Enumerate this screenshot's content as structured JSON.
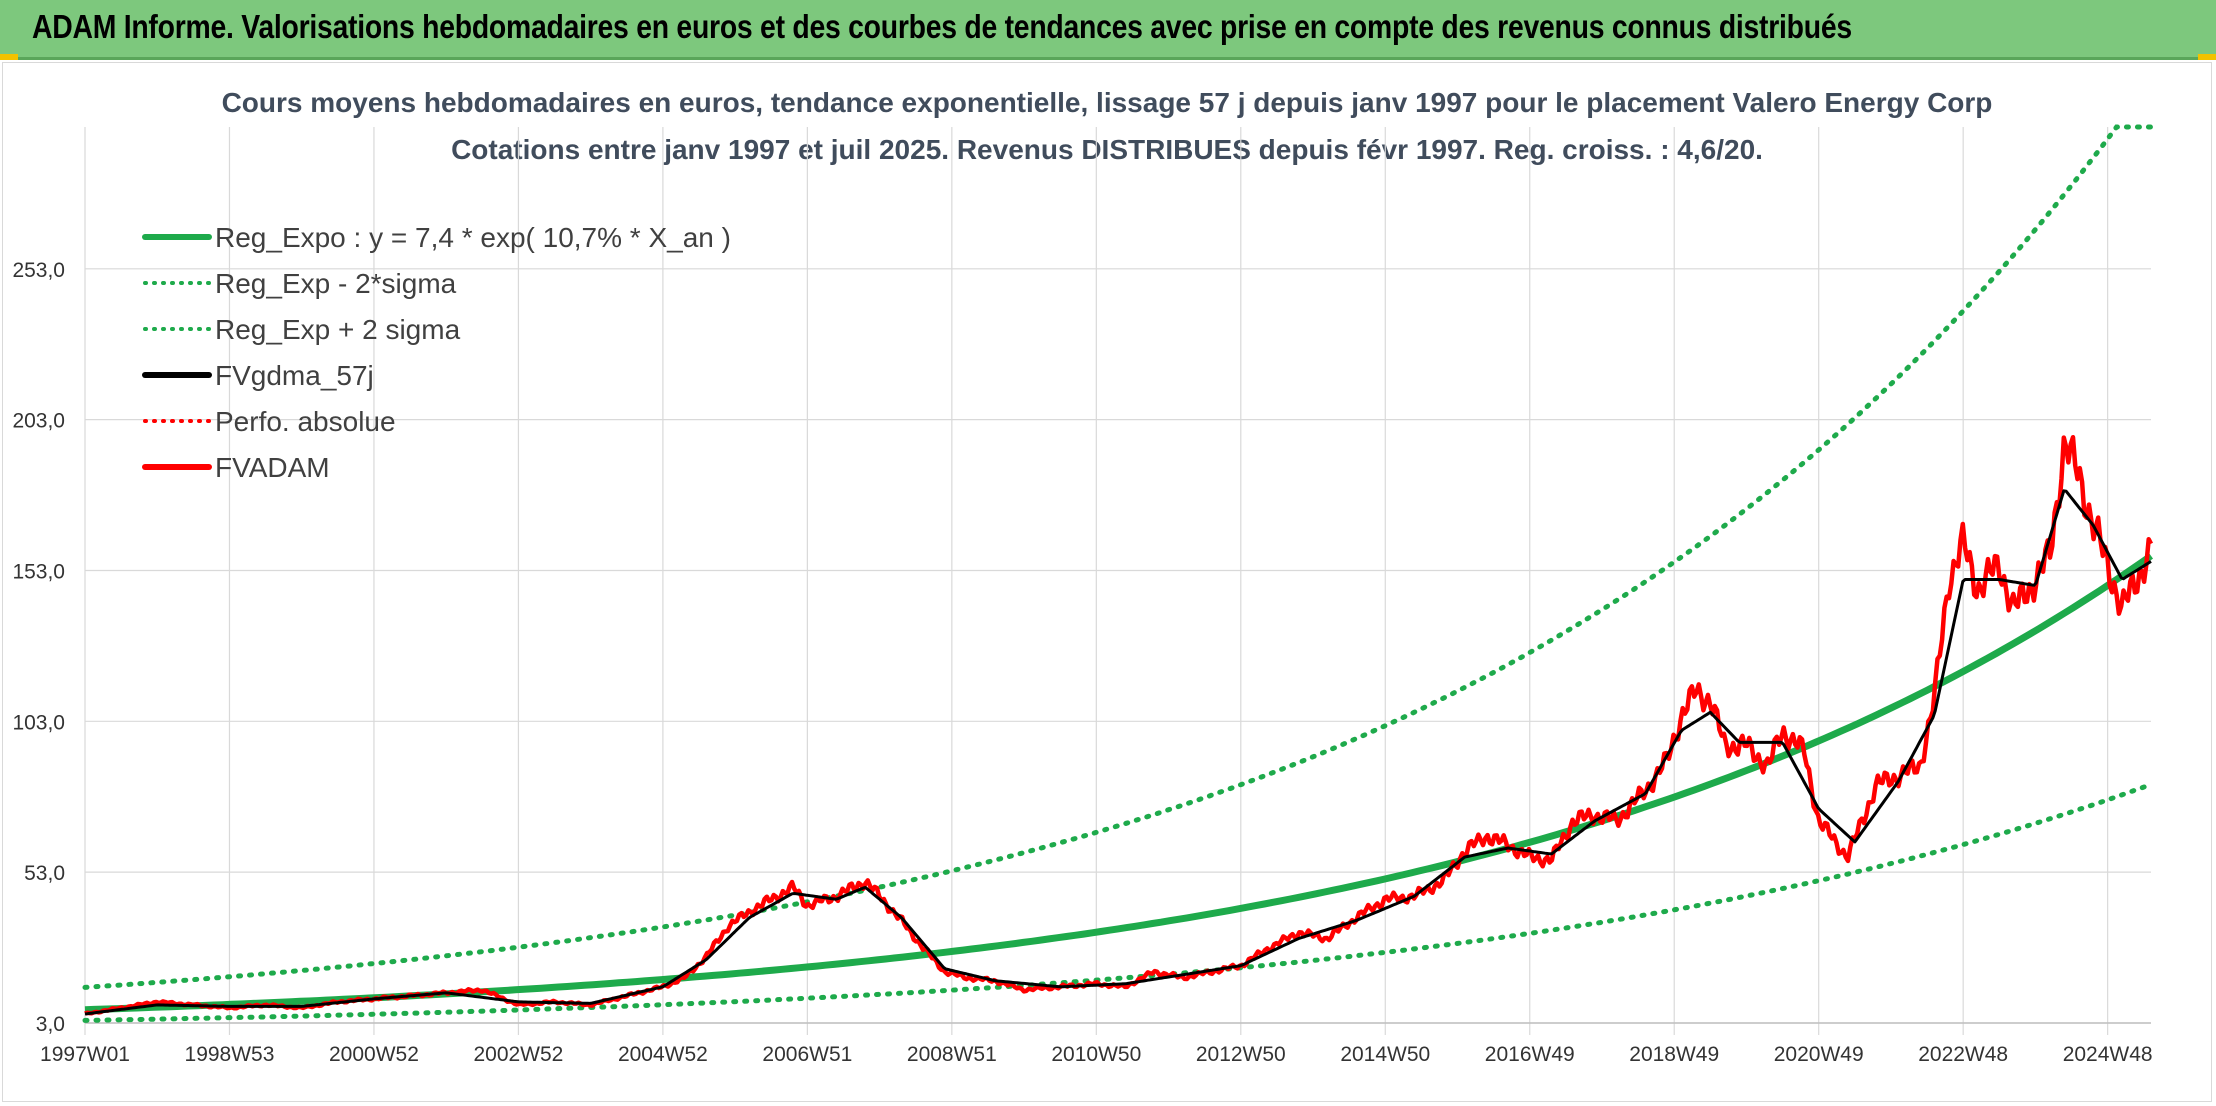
{
  "banner": {
    "title": "ADAM Informe. Valorisations hebdomadaires en euros et des courbes de tendances avec prise en compte des revenus connus distribués"
  },
  "chart_data": {
    "type": "line",
    "title_lines": [
      "Cours moyens hebdomadaires en euros, tendance exponentielle, lissage 57 j depuis janv 1997 pour le placement Valero Energy Corp",
      "Cotations entre janv 1997 et juil 2025. Revenus DISTRIBUES depuis févr 1997. Reg. croiss. : 4,6/20."
    ],
    "x_ticks": [
      {
        "label": "1997W01",
        "year": 1997.0
      },
      {
        "label": "1998W53",
        "year": 1999.0
      },
      {
        "label": "2000W52",
        "year": 2001.0
      },
      {
        "label": "2002W52",
        "year": 2003.0
      },
      {
        "label": "2004W52",
        "year": 2005.0
      },
      {
        "label": "2006W51",
        "year": 2007.0
      },
      {
        "label": "2008W51",
        "year": 2009.0
      },
      {
        "label": "2010W50",
        "year": 2011.0
      },
      {
        "label": "2012W50",
        "year": 2013.0
      },
      {
        "label": "2014W50",
        "year": 2015.0
      },
      {
        "label": "2016W49",
        "year": 2017.0
      },
      {
        "label": "2018W49",
        "year": 2019.0
      },
      {
        "label": "2020W49",
        "year": 2021.0
      },
      {
        "label": "2022W48",
        "year": 2023.0
      },
      {
        "label": "2024W48",
        "year": 2025.0
      }
    ],
    "x_range": [
      1997.0,
      2025.6
    ],
    "y_ticks": [
      {
        "label": "3,0",
        "value": 3
      },
      {
        "label": "53,0",
        "value": 53
      },
      {
        "label": "103,0",
        "value": 103
      },
      {
        "label": "153,0",
        "value": 153
      },
      {
        "label": "203,0",
        "value": 203
      },
      {
        "label": "253,0",
        "value": 253
      }
    ],
    "ylim": [
      3,
      300
    ],
    "legend": {
      "position": "top-left",
      "entries": [
        {
          "label": "Reg_Expo : y = 7,4 * exp( 10,7% *  X_an )",
          "color": "#1eaa4b",
          "style": "solid"
        },
        {
          "label": "Reg_Exp - 2*sigma",
          "color": "#1eaa4b",
          "style": "dotted"
        },
        {
          "label": "Reg_Exp + 2 sigma",
          "color": "#1eaa4b",
          "style": "dotted"
        },
        {
          "label": "FVgdma_57j",
          "color": "#000000",
          "style": "solid"
        },
        {
          "label": "Perfo. absolue",
          "color": "#ff0000",
          "style": "dotted"
        },
        {
          "label": "FVADAM",
          "color": "#ff0000",
          "style": "solid"
        }
      ]
    },
    "regression": {
      "a": 7.4,
      "b": 0.107
    },
    "band_factors": {
      "lower": 0.52,
      "upper": 2.0
    },
    "series": [
      {
        "name": "FVADAM",
        "points": [
          [
            1997.0,
            6
          ],
          [
            1997.5,
            8
          ],
          [
            1998.0,
            10
          ],
          [
            1998.5,
            9
          ],
          [
            1999.0,
            8
          ],
          [
            1999.5,
            9
          ],
          [
            2000.0,
            8
          ],
          [
            2000.5,
            10
          ],
          [
            2001.0,
            11
          ],
          [
            2001.5,
            12
          ],
          [
            2002.0,
            13
          ],
          [
            2002.5,
            14
          ],
          [
            2003.0,
            9
          ],
          [
            2003.5,
            10
          ],
          [
            2004.0,
            9
          ],
          [
            2004.5,
            12
          ],
          [
            2005.0,
            15
          ],
          [
            2005.3,
            18
          ],
          [
            2005.6,
            25
          ],
          [
            2005.9,
            35
          ],
          [
            2006.2,
            40
          ],
          [
            2006.5,
            44
          ],
          [
            2006.8,
            48
          ],
          [
            2007.0,
            42
          ],
          [
            2007.4,
            45
          ],
          [
            2007.8,
            50
          ],
          [
            2008.0,
            45
          ],
          [
            2008.3,
            37
          ],
          [
            2008.6,
            28
          ],
          [
            2008.9,
            20
          ],
          [
            2009.2,
            18
          ],
          [
            2009.6,
            17
          ],
          [
            2010.0,
            14
          ],
          [
            2010.5,
            15
          ],
          [
            2011.0,
            16
          ],
          [
            2011.4,
            15
          ],
          [
            2011.8,
            20
          ],
          [
            2012.2,
            18
          ],
          [
            2012.6,
            20
          ],
          [
            2013.0,
            22
          ],
          [
            2013.4,
            28
          ],
          [
            2013.8,
            33
          ],
          [
            2014.2,
            31
          ],
          [
            2014.6,
            38
          ],
          [
            2015.0,
            44
          ],
          [
            2015.4,
            45
          ],
          [
            2015.8,
            50
          ],
          [
            2016.1,
            60
          ],
          [
            2016.4,
            65
          ],
          [
            2016.7,
            62
          ],
          [
            2017.0,
            58
          ],
          [
            2017.3,
            57
          ],
          [
            2017.6,
            70
          ],
          [
            2017.9,
            72
          ],
          [
            2018.2,
            70
          ],
          [
            2018.6,
            80
          ],
          [
            2018.9,
            90
          ],
          [
            2019.1,
            105
          ],
          [
            2019.3,
            113
          ],
          [
            2019.5,
            110
          ],
          [
            2019.7,
            95
          ],
          [
            2020.0,
            95
          ],
          [
            2020.3,
            88
          ],
          [
            2020.5,
            100
          ],
          [
            2020.8,
            93
          ],
          [
            2021.0,
            70
          ],
          [
            2021.2,
            64
          ],
          [
            2021.4,
            58
          ],
          [
            2021.6,
            70
          ],
          [
            2021.8,
            82
          ],
          [
            2022.1,
            85
          ],
          [
            2022.4,
            88
          ],
          [
            2022.6,
            110
          ],
          [
            2022.8,
            150
          ],
          [
            2023.0,
            162
          ],
          [
            2023.2,
            147
          ],
          [
            2023.5,
            155
          ],
          [
            2023.7,
            140
          ],
          [
            2024.0,
            150
          ],
          [
            2024.2,
            158
          ],
          [
            2024.4,
            195
          ],
          [
            2024.6,
            185
          ],
          [
            2024.8,
            168
          ],
          [
            2025.0,
            155
          ],
          [
            2025.2,
            140
          ],
          [
            2025.4,
            150
          ],
          [
            2025.6,
            160
          ]
        ],
        "color": "#ff0000"
      },
      {
        "name": "FVgdma_57j",
        "points": [
          [
            1997.0,
            6
          ],
          [
            1998.0,
            9
          ],
          [
            1999.0,
            8.5
          ],
          [
            2000.0,
            8.5
          ],
          [
            2001.0,
            11
          ],
          [
            2002.0,
            13
          ],
          [
            2003.0,
            10
          ],
          [
            2004.0,
            9.5
          ],
          [
            2005.0,
            15
          ],
          [
            2005.6,
            24
          ],
          [
            2006.2,
            38
          ],
          [
            2006.8,
            46
          ],
          [
            2007.4,
            44
          ],
          [
            2007.8,
            48
          ],
          [
            2008.3,
            38
          ],
          [
            2008.9,
            21
          ],
          [
            2009.6,
            17
          ],
          [
            2010.5,
            15
          ],
          [
            2011.4,
            16
          ],
          [
            2012.2,
            19
          ],
          [
            2013.0,
            22
          ],
          [
            2013.8,
            31
          ],
          [
            2014.6,
            37
          ],
          [
            2015.4,
            45
          ],
          [
            2016.1,
            58
          ],
          [
            2016.7,
            61
          ],
          [
            2017.3,
            59
          ],
          [
            2017.9,
            70
          ],
          [
            2018.6,
            79
          ],
          [
            2019.1,
            100
          ],
          [
            2019.5,
            106
          ],
          [
            2019.9,
            96
          ],
          [
            2020.5,
            96
          ],
          [
            2021.0,
            74
          ],
          [
            2021.5,
            63
          ],
          [
            2022.1,
            83
          ],
          [
            2022.6,
            105
          ],
          [
            2023.0,
            150
          ],
          [
            2023.5,
            150
          ],
          [
            2024.0,
            148
          ],
          [
            2024.4,
            180
          ],
          [
            2024.8,
            168
          ],
          [
            2025.2,
            150
          ],
          [
            2025.6,
            156
          ]
        ],
        "color": "#000000"
      }
    ]
  }
}
